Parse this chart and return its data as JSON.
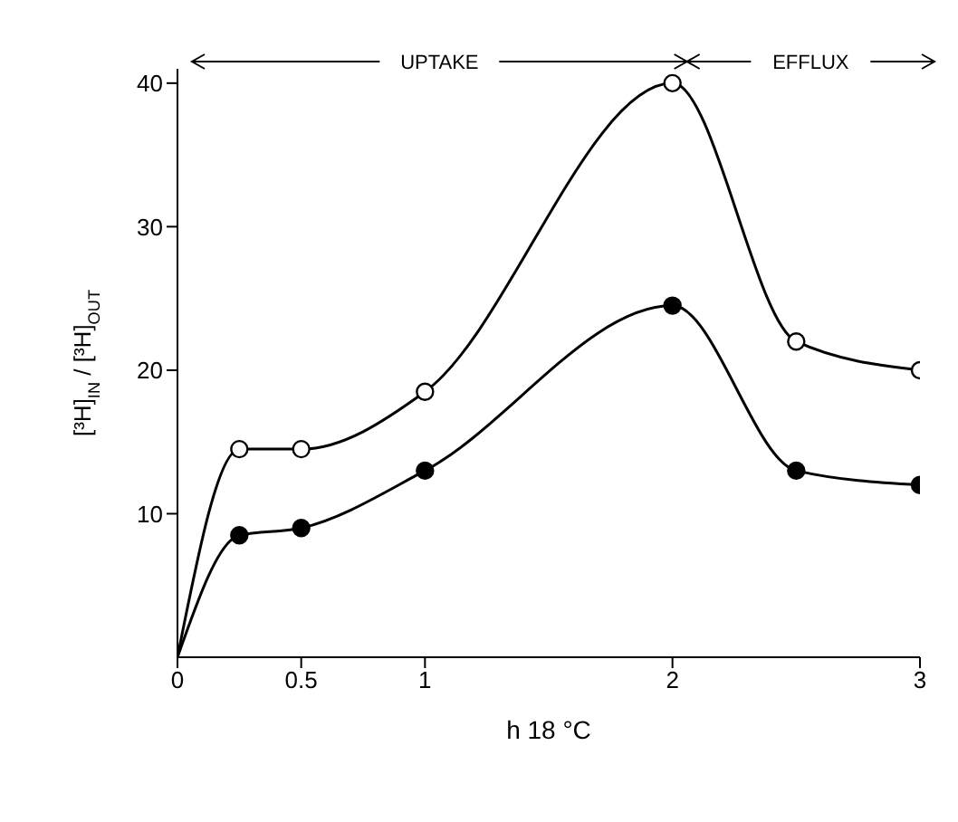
{
  "chart_data": {
    "type": "line",
    "xlabel": "h 18 °C",
    "ylabel": "[³H]$_{IN}$ / [³H]$_{OUT}$",
    "annotations": [
      "UPTAKE",
      "EFFLUX"
    ],
    "x": [
      0,
      0.25,
      0.5,
      1,
      2,
      2.5,
      3
    ],
    "series": [
      {
        "color": "#000000",
        "values": [
          0,
          14.5,
          14.5,
          18.5,
          40,
          22,
          20
        ]
      },
      {
        "color": "#000000",
        "values": [
          0,
          8.5,
          9,
          13,
          24.5,
          13,
          12
        ]
      }
    ],
    "xlim": [
      0,
      3
    ],
    "xticks": [
      0,
      0.5,
      1,
      2,
      3
    ],
    "ylim": [
      0,
      41
    ],
    "yticks": [
      10,
      20,
      30,
      40
    ],
    "marker": "circle",
    "line_style": "solid"
  }
}
